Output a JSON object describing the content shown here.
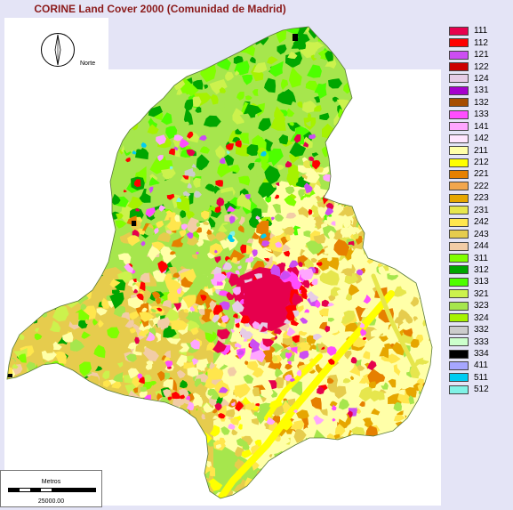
{
  "map": {
    "title": "CORINE Land Cover 2000 (Comunidad de Madrid)",
    "north_label": "Norte",
    "scale": {
      "title": "Metros",
      "value": "25000.00"
    }
  },
  "legend": [
    {
      "code": "111",
      "color": "#e6004d"
    },
    {
      "code": "112",
      "color": "#ff0000"
    },
    {
      "code": "121",
      "color": "#cc4df2"
    },
    {
      "code": "122",
      "color": "#cc0000"
    },
    {
      "code": "124",
      "color": "#e6cce6"
    },
    {
      "code": "131",
      "color": "#a600cc"
    },
    {
      "code": "132",
      "color": "#a64d00"
    },
    {
      "code": "133",
      "color": "#ff4dff"
    },
    {
      "code": "141",
      "color": "#ffa6ff"
    },
    {
      "code": "142",
      "color": "#ffe6ff"
    },
    {
      "code": "211",
      "color": "#ffffa8"
    },
    {
      "code": "212",
      "color": "#ffff00"
    },
    {
      "code": "221",
      "color": "#e68000"
    },
    {
      "code": "222",
      "color": "#f2a64d"
    },
    {
      "code": "223",
      "color": "#e6a600"
    },
    {
      "code": "231",
      "color": "#e6e64d"
    },
    {
      "code": "242",
      "color": "#ffe64d"
    },
    {
      "code": "243",
      "color": "#e6cc4d"
    },
    {
      "code": "244",
      "color": "#f2cca6"
    },
    {
      "code": "311",
      "color": "#80ff00"
    },
    {
      "code": "312",
      "color": "#00a600"
    },
    {
      "code": "313",
      "color": "#4dff00"
    },
    {
      "code": "321",
      "color": "#ccf24d"
    },
    {
      "code": "323",
      "color": "#a6e64d"
    },
    {
      "code": "324",
      "color": "#a6f200"
    },
    {
      "code": "332",
      "color": "#cccccc"
    },
    {
      "code": "333",
      "color": "#ccffcc"
    },
    {
      "code": "334",
      "color": "#000000"
    },
    {
      "code": "411",
      "color": "#a6a6ff"
    },
    {
      "code": "511",
      "color": "#00ccf2"
    },
    {
      "code": "512",
      "color": "#80f2e6"
    }
  ]
}
